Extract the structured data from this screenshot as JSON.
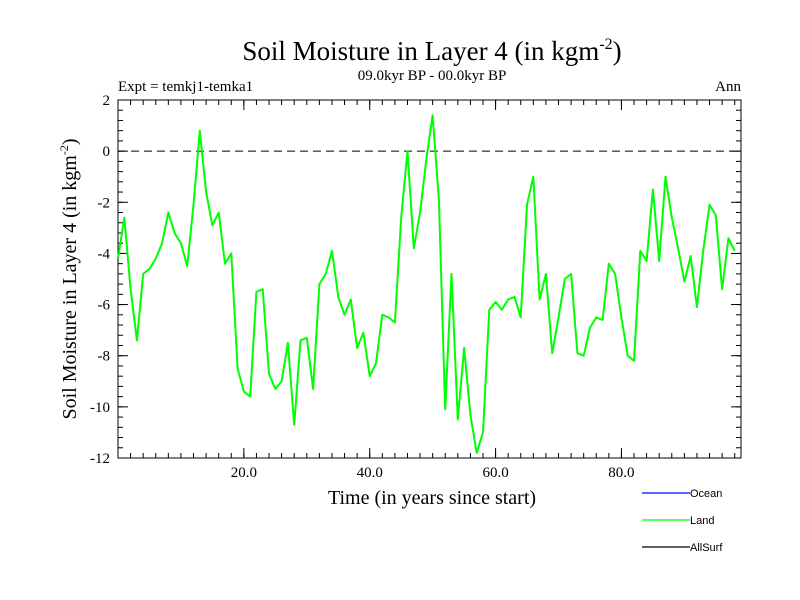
{
  "chart_data": {
    "type": "line",
    "title_main": "Soil Moisture in Layer 4 (in kgm",
    "title_sup": "-2",
    "title_close": ")",
    "subtitle": "09.0kyr BP - 00.0kyr BP",
    "left_label": "Expt = temkj1-temka1",
    "right_label": "Ann",
    "xlabel": "Time (in years since start)",
    "ylabel_main": "Soil Moisture in Layer 4 (in kgm",
    "ylabel_sup": "-2",
    "ylabel_close": ")",
    "xlim": [
      0,
      99
    ],
    "ylim": [
      -12,
      2
    ],
    "x_ticks": [
      {
        "value": 20,
        "label": "20.0"
      },
      {
        "value": 40,
        "label": "40.0"
      },
      {
        "value": 60,
        "label": "60.0"
      },
      {
        "value": 80,
        "label": "80.0"
      }
    ],
    "y_ticks": [
      {
        "value": 2,
        "label": "2"
      },
      {
        "value": 0,
        "label": "0"
      },
      {
        "value": -2,
        "label": "-2"
      },
      {
        "value": -4,
        "label": "-4"
      },
      {
        "value": -6,
        "label": "-6"
      },
      {
        "value": -8,
        "label": "-8"
      },
      {
        "value": -10,
        "label": "-10"
      },
      {
        "value": -12,
        "label": "-12"
      }
    ],
    "zero_line": 0,
    "legend": [
      {
        "name": "Ocean",
        "color": "#0000ff"
      },
      {
        "name": "Land",
        "color": "#00ff00"
      },
      {
        "name": "AllSurf",
        "color": "#000000"
      }
    ],
    "series": [
      {
        "name": "Land",
        "color": "#00ff00",
        "values": [
          -4.2,
          -2.6,
          -5.4,
          -7.4,
          -4.8,
          -4.6,
          -4.2,
          -3.6,
          -2.4,
          -3.2,
          -3.6,
          -4.5,
          -2.1,
          0.8,
          -1.6,
          -2.9,
          -2.4,
          -4.4,
          -4.0,
          -8.5,
          -9.4,
          -9.6,
          -5.5,
          -5.4,
          -8.7,
          -9.3,
          -9.0,
          -7.5,
          -10.7,
          -7.4,
          -7.3,
          -9.3,
          -5.2,
          -4.8,
          -3.9,
          -5.7,
          -6.4,
          -5.8,
          -7.7,
          -7.1,
          -8.8,
          -8.3,
          -6.4,
          -6.5,
          -6.7,
          -2.6,
          0.0,
          -3.8,
          -2.4,
          -0.3,
          1.4,
          -1.9,
          -10.1,
          -4.8,
          -10.5,
          -7.7,
          -10.3,
          -11.8,
          -11.0,
          -6.2,
          -5.9,
          -6.2,
          -5.8,
          -5.7,
          -6.5,
          -2.1,
          -1.0,
          -5.8,
          -4.8,
          -7.9,
          -6.5,
          -5.0,
          -4.8,
          -7.9,
          -8.0,
          -6.9,
          -6.5,
          -6.6,
          -4.4,
          -4.8,
          -6.5,
          -8.0,
          -8.2,
          -3.9,
          -4.3,
          -1.5,
          -4.3,
          -1.0,
          -2.6,
          -3.8,
          -5.1,
          -4.1,
          -6.1,
          -3.9,
          -2.1,
          -2.5,
          -5.4,
          -3.4,
          -3.9
        ]
      }
    ]
  }
}
